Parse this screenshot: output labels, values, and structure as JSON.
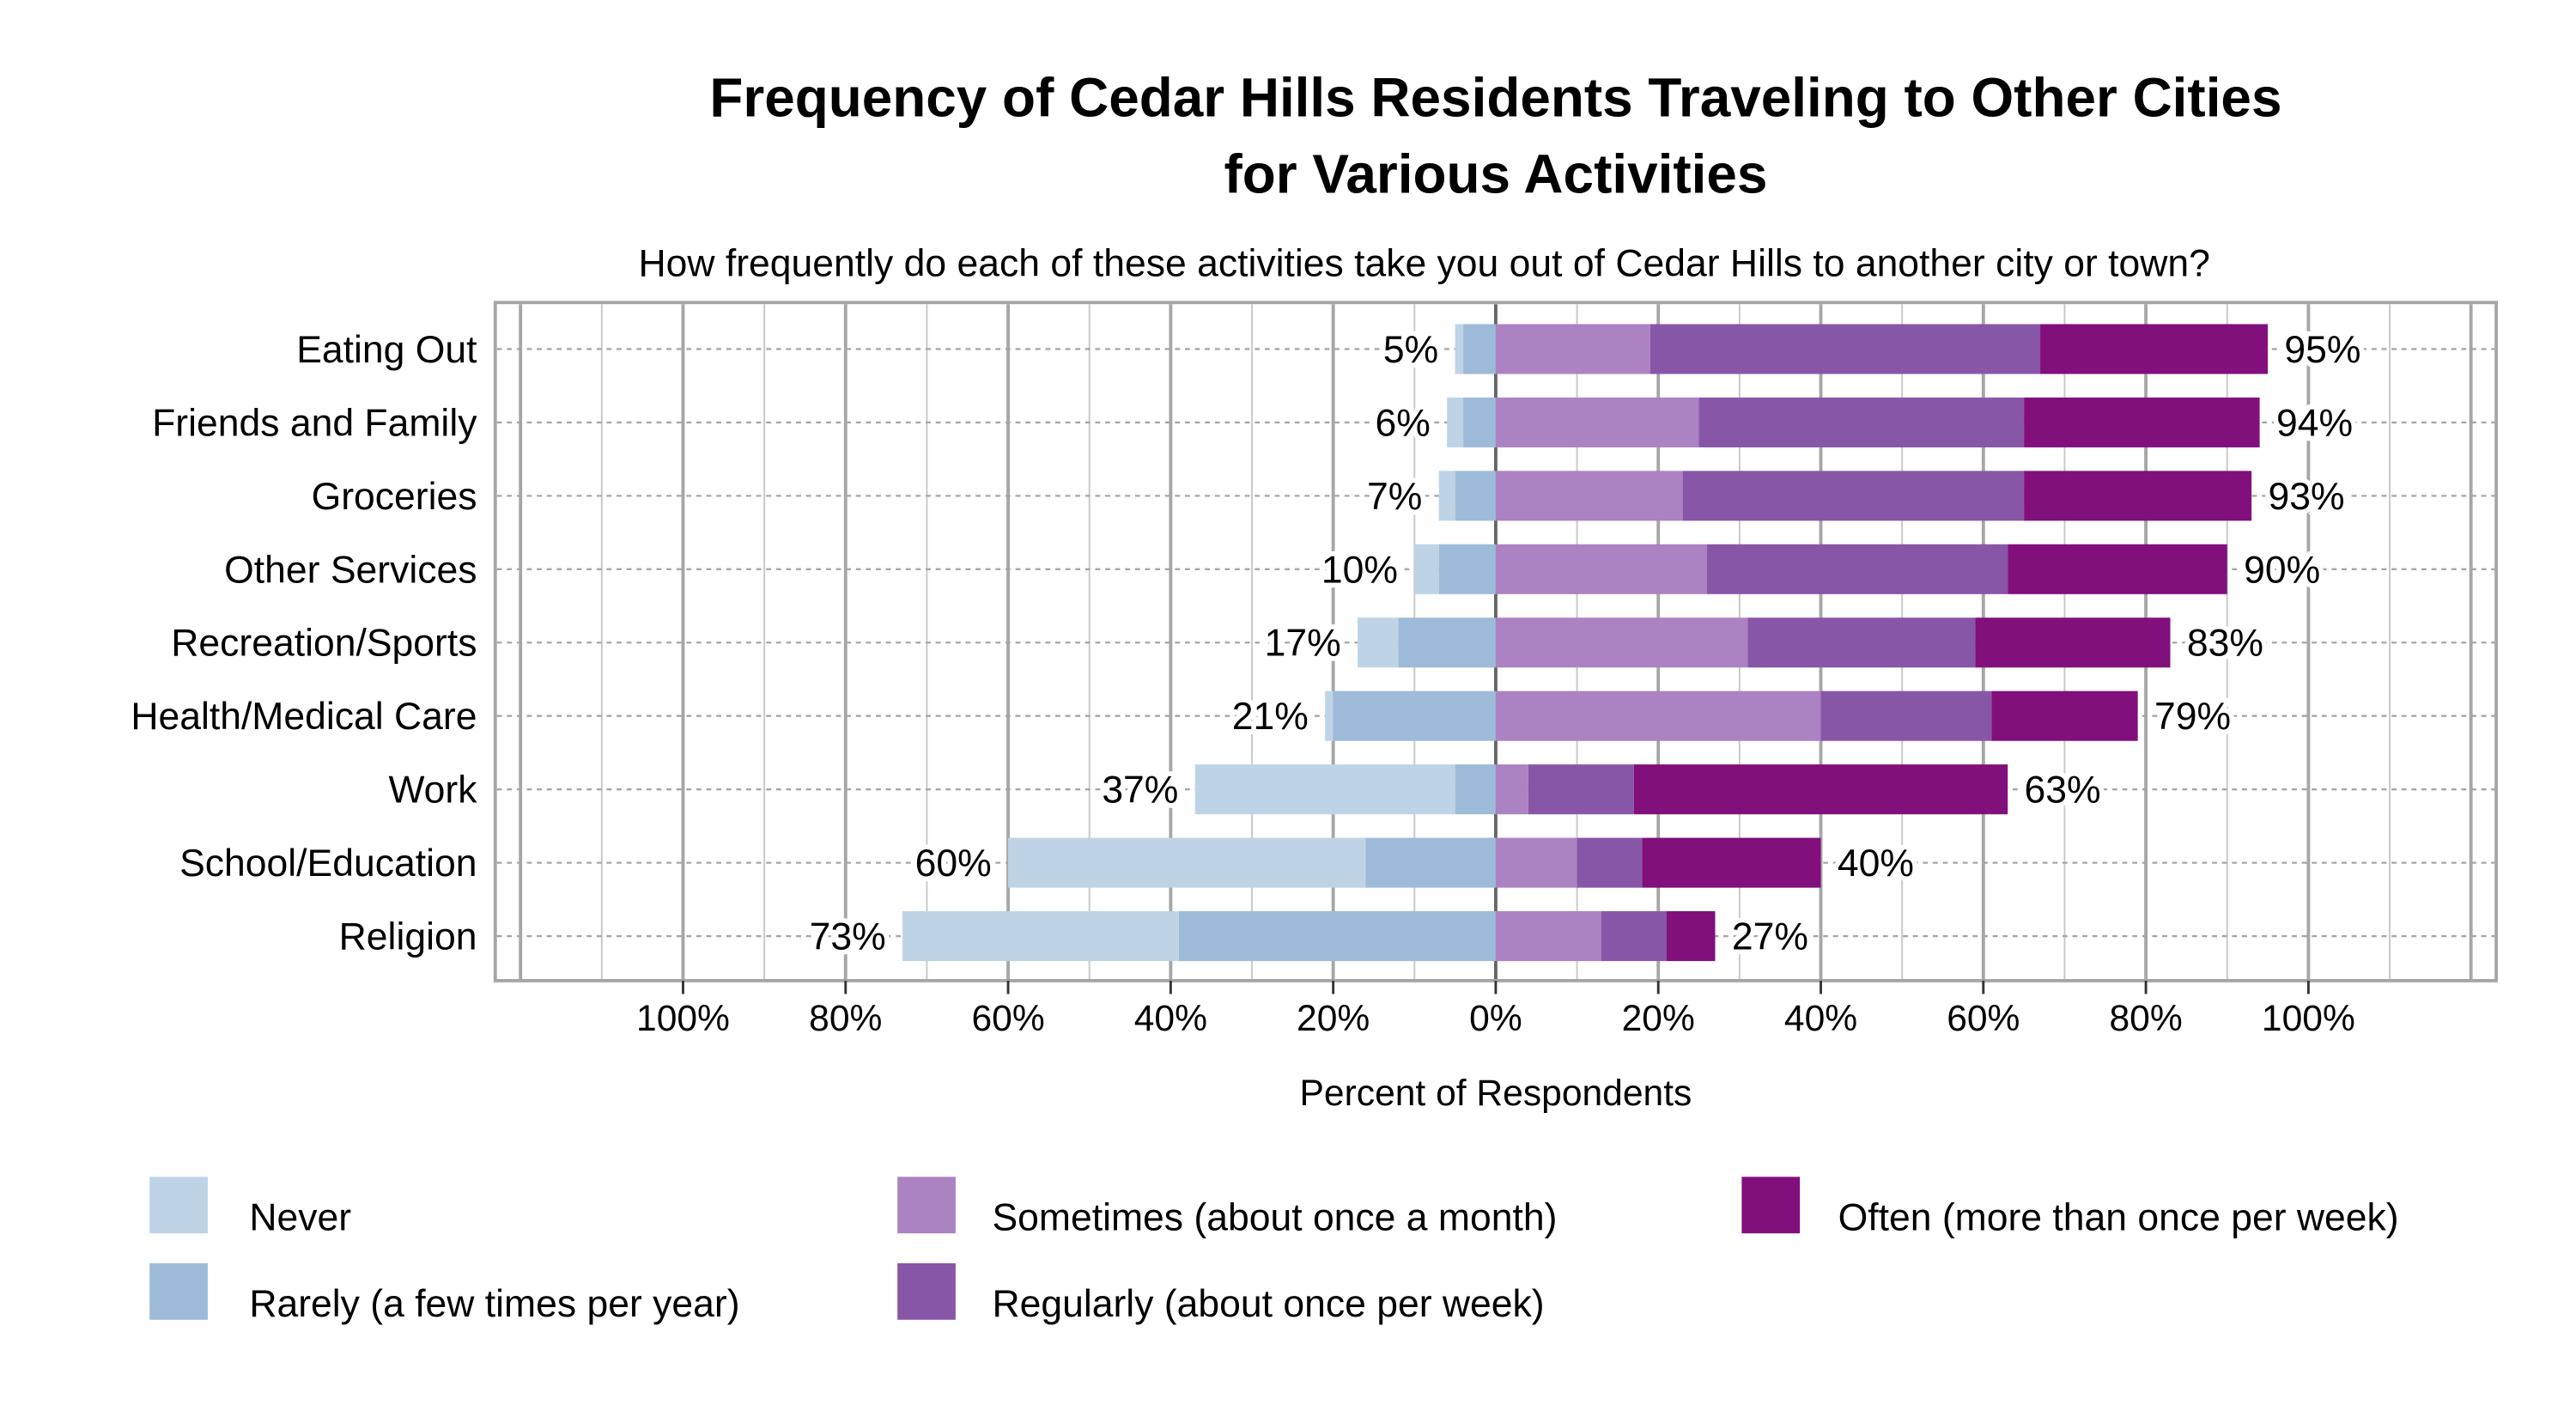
{
  "chart_data": {
    "type": "bar",
    "orientation": "horizontal",
    "stacked": "diverging",
    "title": [
      "Frequency of Cedar Hills Residents Traveling to Other Cities",
      "for Various Activities"
    ],
    "subtitle": "How frequently do each of these activities take you out of Cedar Hills to another city or town?",
    "xlabel": "Percent of Respondents",
    "xlim": [
      -123,
      123
    ],
    "xticks": [
      -100,
      -80,
      -60,
      -40,
      -20,
      0,
      20,
      40,
      60,
      80,
      100
    ],
    "xtick_labels": [
      "100%",
      "80%",
      "60%",
      "40%",
      "20%",
      "0%",
      "20%",
      "40%",
      "60%",
      "80%",
      "100%"
    ],
    "grid": true,
    "legend_position": "bottom",
    "categories": [
      "Eating Out",
      "Friends and Family",
      "Groceries",
      "Other Services",
      "Recreation/Sports",
      "Health/Medical Care",
      "Work",
      "School/Education",
      "Religion"
    ],
    "series": [
      {
        "name": "Never",
        "side": "negative",
        "color": "#bfd3e6",
        "values": [
          1,
          2,
          2,
          3,
          5,
          1,
          32,
          44,
          34
        ]
      },
      {
        "name": "Rarely (a few times per year)",
        "side": "negative",
        "color": "#9ebad9",
        "values": [
          4,
          4,
          5,
          7,
          12,
          20,
          5,
          16,
          39
        ]
      },
      {
        "name": "Sometimes (about once a month)",
        "side": "positive",
        "color": "#ab82c2",
        "values": [
          19,
          25,
          23,
          26,
          31,
          40,
          4,
          10,
          13
        ]
      },
      {
        "name": "Regularly (about once per week)",
        "side": "positive",
        "color": "#8856a7",
        "values": [
          48,
          40,
          42,
          37,
          28,
          21,
          13,
          8,
          8
        ]
      },
      {
        "name": "Often (more than once per week)",
        "side": "positive",
        "color": "#810f7c",
        "values": [
          28,
          29,
          28,
          27,
          24,
          18,
          46,
          22,
          6
        ]
      }
    ],
    "negative_totals": [
      "5%",
      "6%",
      "7%",
      "10%",
      "17%",
      "21%",
      "37%",
      "60%",
      "73%"
    ],
    "positive_totals": [
      "95%",
      "94%",
      "93%",
      "90%",
      "83%",
      "79%",
      "63%",
      "40%",
      "27%"
    ]
  }
}
